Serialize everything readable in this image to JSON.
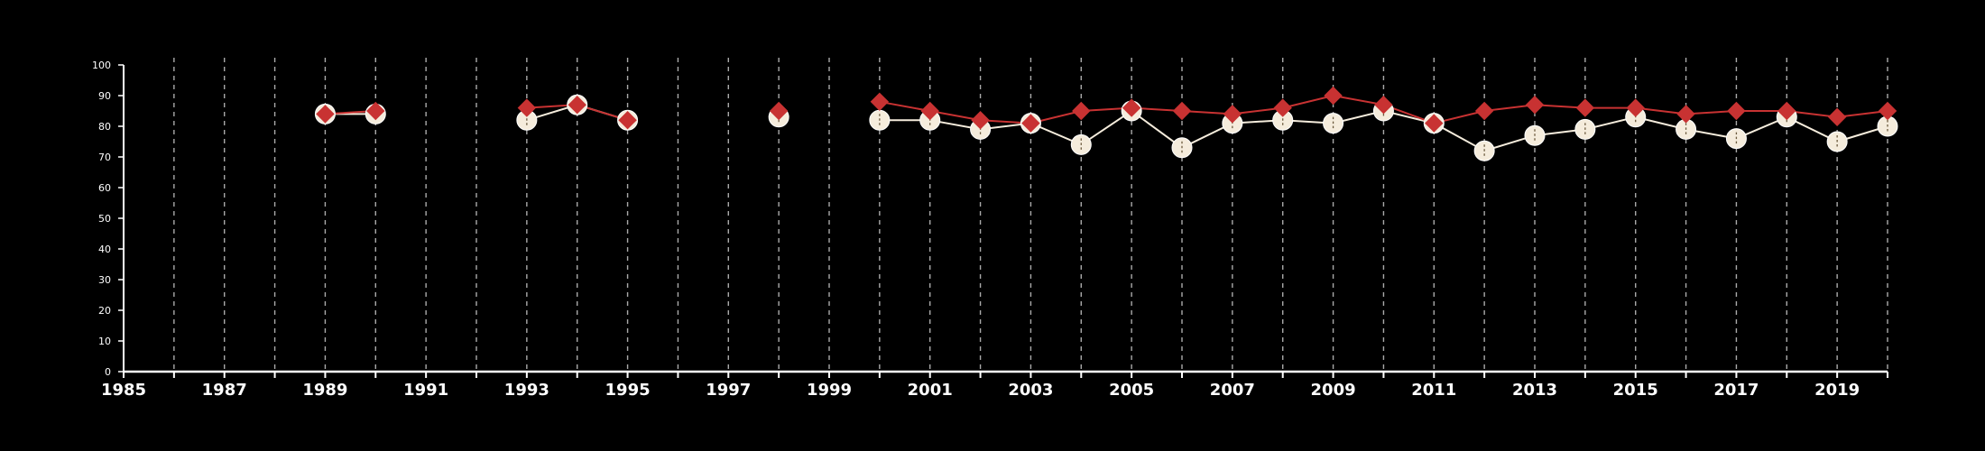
{
  "chart_data": {
    "type": "line",
    "title": "",
    "xlabel": "",
    "ylabel": "",
    "xlim": [
      1985,
      2020
    ],
    "ylim": [
      0,
      100
    ],
    "y_ticks": [
      0,
      10,
      20,
      30,
      40,
      50,
      60,
      70,
      80,
      90,
      100
    ],
    "x_tick_labels": [
      1985,
      1987,
      1989,
      1991,
      1993,
      1995,
      1997,
      1999,
      2001,
      2003,
      2005,
      2007,
      2009,
      2011,
      2013,
      2015,
      2017,
      2019
    ],
    "vertical_grid": "dashed, every year",
    "legend": "none",
    "colors": {
      "background": "#000000",
      "axes": "#ffffff",
      "grid": "#aaaaaa",
      "series_red": "#c83232",
      "series_cream": "#f5ecdc"
    },
    "series": [
      {
        "marker": "circle",
        "color": "#f5ecdc",
        "segments": [
          [
            [
              1989,
              84
            ],
            [
              1990,
              84
            ]
          ],
          [
            [
              1993,
              82
            ],
            [
              1994,
              87
            ],
            [
              1995,
              82
            ]
          ],
          [
            [
              1998,
              83
            ]
          ],
          [
            [
              2000,
              82
            ],
            [
              2001,
              82
            ],
            [
              2002,
              79
            ],
            [
              2003,
              81
            ],
            [
              2004,
              74
            ],
            [
              2005,
              85
            ],
            [
              2006,
              73
            ],
            [
              2007,
              81
            ],
            [
              2008,
              82
            ],
            [
              2009,
              81
            ],
            [
              2010,
              85
            ],
            [
              2011,
              81
            ],
            [
              2012,
              72
            ],
            [
              2013,
              77
            ],
            [
              2014,
              79
            ],
            [
              2015,
              83
            ],
            [
              2016,
              79
            ],
            [
              2017,
              76
            ],
            [
              2018,
              83
            ],
            [
              2019,
              75
            ],
            [
              2020,
              80
            ]
          ]
        ]
      },
      {
        "marker": "diamond",
        "color": "#c83232",
        "segments": [
          [
            [
              1989,
              84
            ],
            [
              1990,
              85
            ]
          ],
          [
            [
              1993,
              86
            ],
            [
              1994,
              87
            ],
            [
              1995,
              82
            ]
          ],
          [
            [
              1998,
              85
            ]
          ],
          [
            [
              2000,
              88
            ],
            [
              2001,
              85
            ],
            [
              2002,
              82
            ],
            [
              2003,
              81
            ],
            [
              2004,
              85
            ],
            [
              2005,
              86
            ],
            [
              2006,
              85
            ],
            [
              2007,
              84
            ],
            [
              2008,
              86
            ],
            [
              2009,
              90
            ],
            [
              2010,
              87
            ],
            [
              2011,
              81
            ],
            [
              2012,
              85
            ],
            [
              2013,
              87
            ],
            [
              2014,
              86
            ],
            [
              2015,
              86
            ],
            [
              2016,
              84
            ],
            [
              2017,
              85
            ],
            [
              2018,
              85
            ],
            [
              2019,
              83
            ],
            [
              2020,
              85
            ]
          ]
        ]
      }
    ]
  }
}
